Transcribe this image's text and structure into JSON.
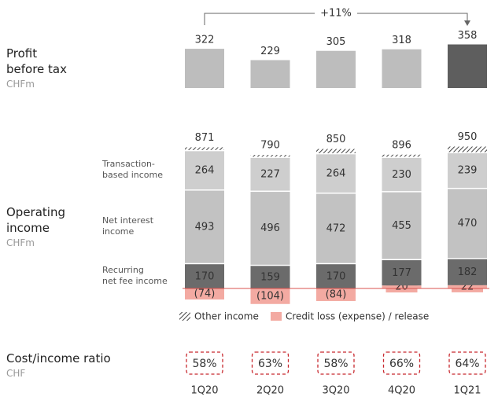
{
  "chart_data": [
    {
      "type": "bar",
      "title": "Profit\nbefore tax",
      "subtitle": "CHFm",
      "annotation": "+11%",
      "values": [
        322,
        229,
        305,
        318,
        358
      ],
      "colors": [
        "#bdbdbd",
        "#bdbdbd",
        "#bdbdbd",
        "#bdbdbd",
        "#5e5e5e"
      ]
    },
    {
      "type": "stacked_bar",
      "title": "Operating\nincome",
      "subtitle": "CHFm",
      "totals": [
        871,
        790,
        850,
        896,
        950
      ],
      "series": [
        {
          "name": "Credit loss (expense) / release",
          "color": "#f3aaa2",
          "values": [
            -74,
            -104,
            -84,
            20,
            22
          ],
          "value_labels": [
            "(74)",
            "(104)",
            "(84)",
            "20",
            "22"
          ]
        },
        {
          "name": "Recurring\nnet fee income",
          "color": "#6b6b6b",
          "values": [
            170,
            159,
            170,
            177,
            182
          ]
        },
        {
          "name": "Net interest\nincome",
          "color": "#c2c2c2",
          "values": [
            493,
            496,
            472,
            455,
            470
          ]
        },
        {
          "name": "Transaction-\nbased income",
          "color": "#cecece",
          "values": [
            264,
            227,
            264,
            230,
            239
          ]
        },
        {
          "name": "Other income",
          "color": "#555555",
          "hatch": true,
          "values": [
            18,
            12,
            28,
            14,
            37
          ]
        }
      ]
    },
    {
      "type": "ratio",
      "title": "Cost/income ratio",
      "subtitle": "CHF",
      "color": "#c8282e",
      "categories": [
        "1Q20",
        "2Q20",
        "3Q20",
        "4Q20",
        "1Q21"
      ],
      "values": [
        58,
        63,
        58,
        66,
        64
      ],
      "value_labels": [
        "58%",
        "63%",
        "58%",
        "66%",
        "64%"
      ]
    }
  ]
}
